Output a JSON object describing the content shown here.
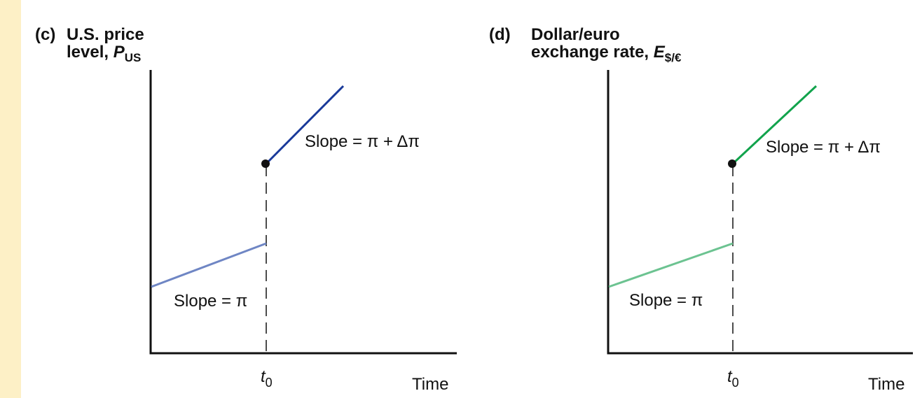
{
  "panels": [
    {
      "label": "(c)",
      "title_line1": "U.S. price",
      "title_line2": "level, ",
      "variable": "P",
      "variable_subscript": "US",
      "slope_after": "Slope = π + Δπ",
      "slope_before": "Slope = π",
      "time_marker": "t",
      "time_marker_subscript": "0",
      "x_label": "Time"
    },
    {
      "label": "(d)",
      "title_line1": "Dollar/euro",
      "title_line2": "exchange rate, ",
      "variable": "E",
      "variable_subscript": "$/€",
      "slope_after": "Slope = π + Δπ",
      "slope_before": "Slope = π",
      "time_marker": "t",
      "time_marker_subscript": "0",
      "x_label": "Time"
    }
  ]
}
